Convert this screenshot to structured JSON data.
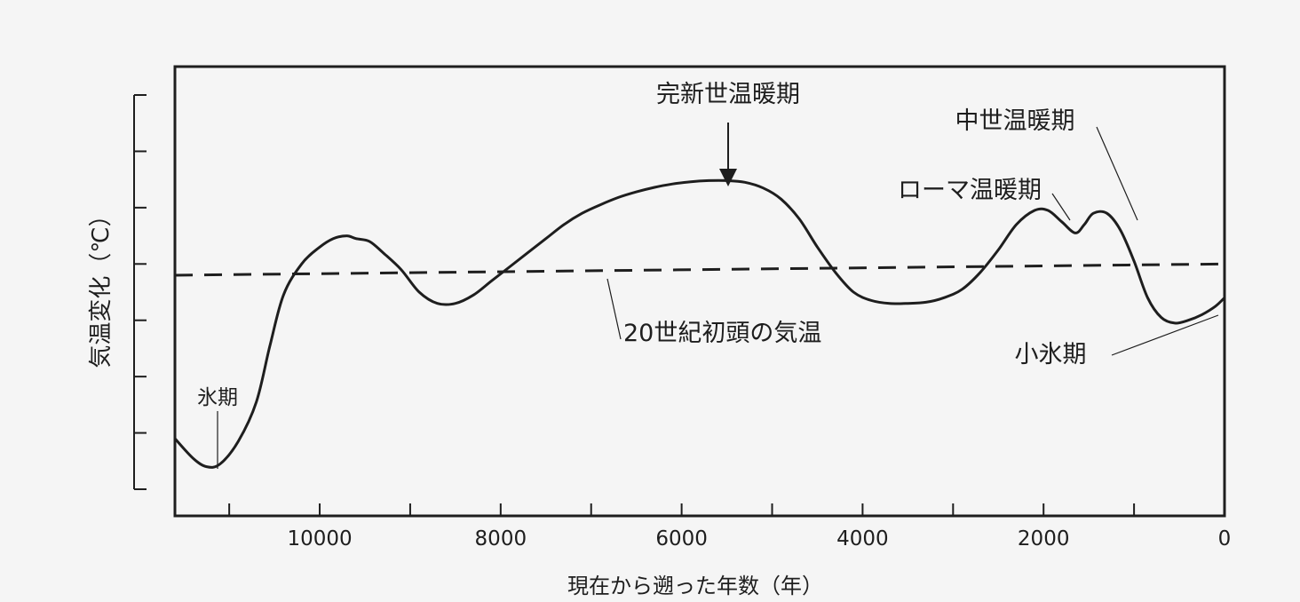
{
  "chart_data": {
    "type": "line",
    "title": "",
    "xlabel": "現在から遡った年数（年）",
    "ylabel": "気温変化（℃）",
    "x_axis_reversed": true,
    "xlim": [
      11600,
      0
    ],
    "ylim": [
      0,
      7
    ],
    "x_tick_labels": [
      {
        "value": 10000,
        "label": "10000"
      },
      {
        "value": 8000,
        "label": "8000"
      },
      {
        "value": 6000,
        "label": "6000"
      },
      {
        "value": 4000,
        "label": "4000"
      },
      {
        "value": 2000,
        "label": "2000"
      },
      {
        "value": 0,
        "label": "0"
      }
    ],
    "x_minor_ticks": [
      11000,
      9000,
      7000,
      5000,
      3000,
      1000
    ],
    "y_ticks_unlabeled": [
      1,
      2,
      3,
      4,
      5,
      6,
      7
    ],
    "grid": false,
    "series": [
      {
        "style": "solid",
        "x": [
          11600,
          11400,
          11250,
          11100,
          10900,
          10700,
          10550,
          10400,
          10200,
          10000,
          9850,
          9700,
          9600,
          9450,
          9300,
          9100,
          8900,
          8700,
          8500,
          8300,
          8100,
          7900,
          7700,
          7500,
          7300,
          7100,
          6900,
          6700,
          6500,
          6300,
          6100,
          5900,
          5700,
          5500,
          5300,
          5100,
          4900,
          4700,
          4500,
          4300,
          4100,
          3900,
          3700,
          3500,
          3300,
          3100,
          2900,
          2700,
          2500,
          2300,
          2100,
          1950,
          1800,
          1650,
          1550,
          1450,
          1300,
          1150,
          1000,
          850,
          700,
          550,
          400,
          250,
          100,
          0
        ],
        "y": [
          0.9,
          0.55,
          0.4,
          0.45,
          0.85,
          1.55,
          2.55,
          3.45,
          4.0,
          4.3,
          4.45,
          4.5,
          4.45,
          4.4,
          4.2,
          3.9,
          3.5,
          3.3,
          3.3,
          3.45,
          3.7,
          3.95,
          4.2,
          4.45,
          4.7,
          4.9,
          5.05,
          5.18,
          5.28,
          5.36,
          5.42,
          5.46,
          5.48,
          5.48,
          5.45,
          5.35,
          5.15,
          4.8,
          4.3,
          3.85,
          3.5,
          3.35,
          3.3,
          3.3,
          3.32,
          3.4,
          3.55,
          3.85,
          4.25,
          4.7,
          4.95,
          4.95,
          4.75,
          4.55,
          4.7,
          4.9,
          4.9,
          4.6,
          4.05,
          3.4,
          3.05,
          2.95,
          3.0,
          3.1,
          3.25,
          3.4
        ]
      },
      {
        "style": "dashed",
        "x": [
          11600,
          0
        ],
        "y": [
          3.8,
          4.0
        ]
      }
    ],
    "annotations": [
      {
        "key": "ice_age",
        "text": "氷期"
      },
      {
        "key": "holocene",
        "text": "完新世温暖期"
      },
      {
        "key": "medieval",
        "text": "中世温暖期"
      },
      {
        "key": "roman",
        "text": "ローマ温暖期"
      },
      {
        "key": "early20c",
        "text": "20世紀初頭の気温"
      },
      {
        "key": "little_ice_age",
        "text": "小氷期"
      }
    ],
    "colors": {
      "line": "#1e1e1e",
      "background": "#f5f5f5"
    }
  }
}
